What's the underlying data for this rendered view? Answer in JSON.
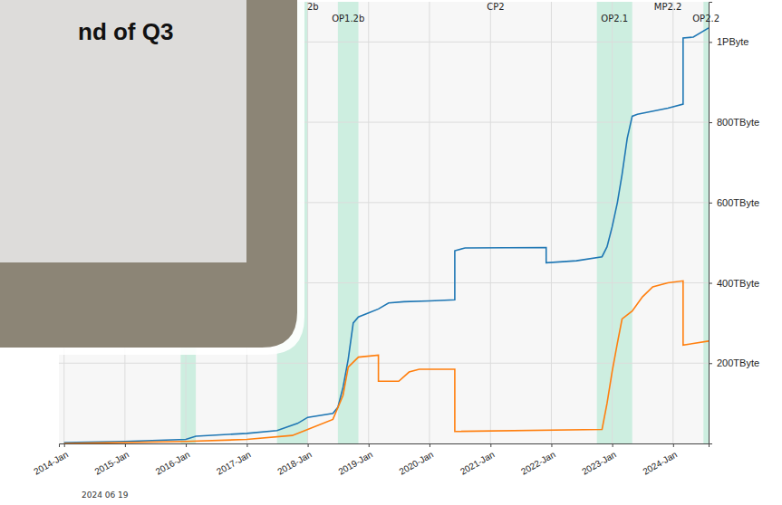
{
  "chart_data": {
    "type": "line",
    "xlim": [
      "2013-12",
      "2024-08"
    ],
    "ylim": [
      0,
      1100
    ],
    "xticks": [
      {
        "value": "2014-01",
        "label": "2014-Jan"
      },
      {
        "value": "2015-01",
        "label": "2015-Jan"
      },
      {
        "value": "2016-01",
        "label": "2016-Jan"
      },
      {
        "value": "2017-01",
        "label": "2017-Jan"
      },
      {
        "value": "2018-01",
        "label": "2018-Jan"
      },
      {
        "value": "2019-01",
        "label": "2019-Jan"
      },
      {
        "value": "2020-01",
        "label": "2020-Jan"
      },
      {
        "value": "2021-01",
        "label": "2021-Jan"
      },
      {
        "value": "2022-01",
        "label": "2022-Jan"
      },
      {
        "value": "2023-01",
        "label": "2023-Jan"
      },
      {
        "value": "2024-01",
        "label": "2024-Jan"
      }
    ],
    "yticks": [
      {
        "value": 200,
        "label": "200TByte"
      },
      {
        "value": 400,
        "label": "400TByte"
      },
      {
        "value": 600,
        "label": "600TByte"
      },
      {
        "value": 800,
        "label": "800TByte"
      },
      {
        "value": 1000,
        "label": "1PByte"
      }
    ],
    "grid": true,
    "series": [
      {
        "color": "#1f77b4",
        "x": [
          "2014-01",
          "2015-01",
          "2016-01",
          "2016-03",
          "2017-01",
          "2017-07",
          "2017-11",
          "2018-01",
          "2018-06",
          "2018-07",
          "2018-08",
          "2018-09",
          "2018-10",
          "2018-11",
          "2019-01",
          "2019-03",
          "2019-05",
          "2019-08",
          "2020-01",
          "2020-06",
          "2020-06",
          "2020-08",
          "2021-12",
          "2021-12",
          "2022-06",
          "2022-11",
          "2022-12",
          "2023-01",
          "2023-02",
          "2023-03",
          "2023-04",
          "2023-05",
          "2023-06",
          "2023-12",
          "2024-03",
          "2024-03",
          "2024-05",
          "2024-08"
        ],
        "values": [
          2,
          5,
          10,
          18,
          25,
          32,
          50,
          65,
          75,
          90,
          140,
          210,
          300,
          315,
          325,
          335,
          350,
          353,
          355,
          358,
          480,
          487,
          488,
          450,
          455,
          465,
          490,
          540,
          600,
          670,
          760,
          815,
          820,
          835,
          845,
          1010,
          1012,
          1035
        ]
      },
      {
        "color": "#ff7f0e",
        "x": [
          "2014-01",
          "2016-01",
          "2017-01",
          "2017-10",
          "2018-01",
          "2018-06",
          "2018-08",
          "2018-09",
          "2018-11",
          "2019-03",
          "2019-03",
          "2019-07",
          "2019-09",
          "2019-11",
          "2020-06",
          "2020-06",
          "2022-11",
          "2022-12",
          "2023-01",
          "2023-02",
          "2023-03",
          "2023-05",
          "2023-07",
          "2023-09",
          "2023-12",
          "2024-03",
          "2024-03",
          "2024-08"
        ],
        "values": [
          0,
          5,
          10,
          20,
          35,
          60,
          120,
          190,
          215,
          220,
          155,
          155,
          178,
          185,
          185,
          30,
          35,
          100,
          180,
          250,
          310,
          330,
          365,
          390,
          400,
          405,
          245,
          255
        ]
      }
    ],
    "bands": [
      {
        "start": "2015-12",
        "end": "2016-03"
      },
      {
        "start": "2017-07",
        "end": "2018-01"
      },
      {
        "start": "2018-07",
        "end": "2018-11",
        "label": "OP1.2b"
      },
      {
        "start": "2022-10",
        "end": "2023-05",
        "label": "OP2.1"
      },
      {
        "start": "2024-07",
        "end": "2024-08",
        "label": "OP2.2"
      }
    ],
    "period_labels": [
      {
        "x": "2018-02",
        "label": "2b"
      },
      {
        "x": "2021-02",
        "label": "CP2"
      },
      {
        "x": "2023-12",
        "label": "MP2.2"
      }
    ]
  },
  "slide": {
    "text": "nd of Q3",
    "date": "2024 06 19"
  }
}
